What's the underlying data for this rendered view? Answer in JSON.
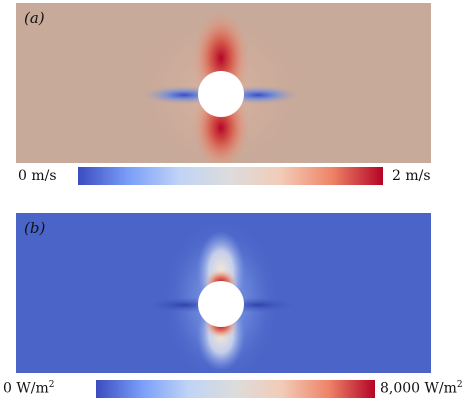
{
  "figure": {
    "panel_a": {
      "label": "(a)",
      "colorbar": {
        "min_label": "0 m/s",
        "max_label": "2 m/s"
      },
      "colors": {
        "background": "#c8aa9a",
        "high": "#b40426",
        "low": "#3b4cc0"
      }
    },
    "panel_b": {
      "label": "(b)",
      "colorbar": {
        "min_value": "0 W/m",
        "max_value": "8,000 W/m",
        "unit_exponent": "2"
      },
      "colors": {
        "background": "#4a64c8",
        "high": "#b40426",
        "low": "#3b4cc0"
      }
    }
  }
}
